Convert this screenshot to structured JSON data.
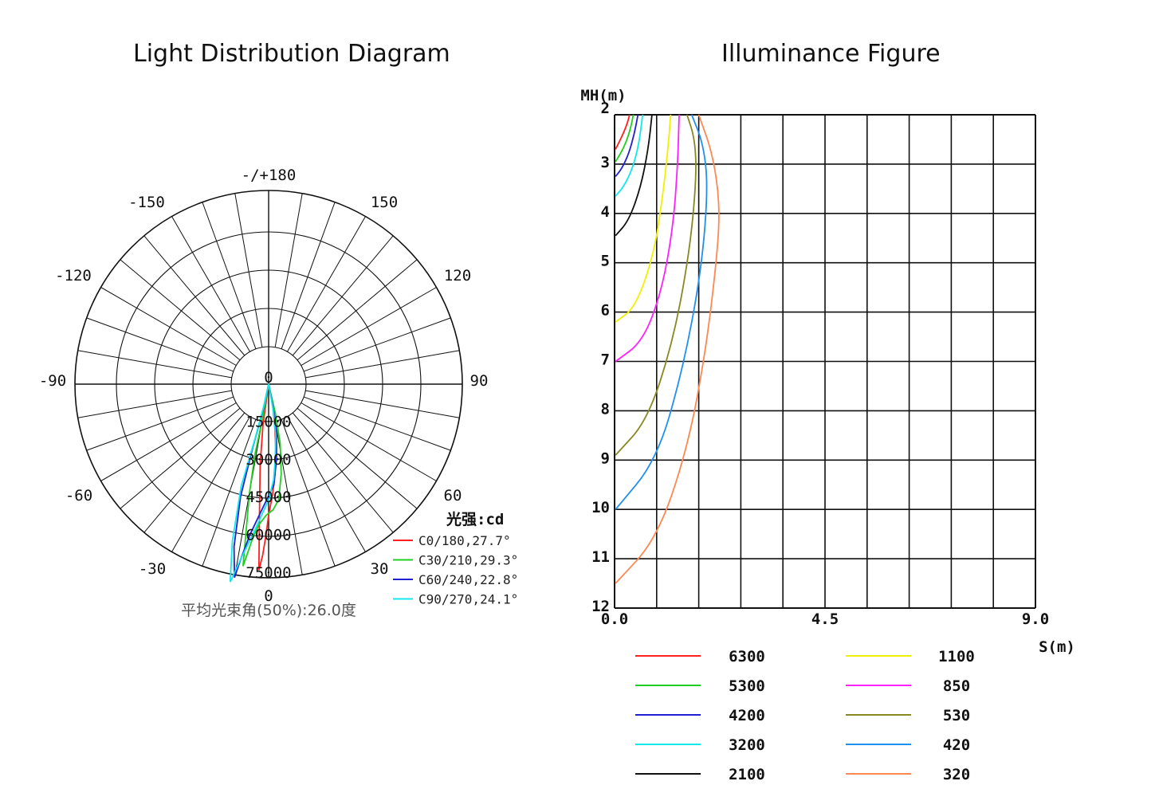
{
  "chart_data": [
    {
      "type": "polar",
      "title": "Light Distribution Diagram",
      "angle_labels": [
        "-/+180",
        "150",
        "-150",
        "120",
        "-120",
        "90",
        "-90",
        "60",
        "-60",
        "30",
        "-30",
        "0"
      ],
      "radial_ticks": [
        0,
        15000,
        30000,
        45000,
        60000,
        75000
      ],
      "radial_tick_labels": [
        "0",
        "15000",
        "30000",
        "45000",
        "60000",
        "75000"
      ],
      "unit_label": "光强:cd",
      "footer": "平均光束角(50%):26.0度",
      "series": [
        {
          "name": "C0/180,27.7°",
          "color": "#ff2020",
          "points": [
            [
              -3,
              74000
            ],
            [
              -2,
              68000
            ],
            [
              -1,
              60000
            ],
            [
              0,
              52000
            ],
            [
              2,
              44000
            ],
            [
              4,
              36000
            ],
            [
              6,
              28000
            ],
            [
              8,
              18000
            ],
            [
              10,
              10000
            ],
            [
              12,
              4000
            ],
            [
              14,
              0
            ],
            [
              0,
              0
            ],
            [
              -8,
              16000
            ],
            [
              -6,
              32000
            ],
            [
              -4,
              52000
            ],
            [
              -3,
              74000
            ]
          ]
        },
        {
          "name": "C30/210,29.3°",
          "color": "#20d020",
          "points": [
            [
              -8,
              73000
            ],
            [
              -6,
              62000
            ],
            [
              -4,
              56000
            ],
            [
              -1,
              52000
            ],
            [
              2,
              50000
            ],
            [
              5,
              46000
            ],
            [
              8,
              36000
            ],
            [
              11,
              24000
            ],
            [
              13,
              12000
            ],
            [
              14,
              0
            ],
            [
              0,
              0
            ],
            [
              -10,
              14000
            ],
            [
              -11,
              28000
            ],
            [
              -10,
              44000
            ],
            [
              -8,
              73000
            ]
          ]
        },
        {
          "name": "C60/240,22.8°",
          "color": "#2020d0",
          "points": [
            [
              -10,
              78000
            ],
            [
              -9,
              70000
            ],
            [
              -7,
              60000
            ],
            [
              -4,
              52000
            ],
            [
              -1,
              46000
            ],
            [
              3,
              40000
            ],
            [
              6,
              30000
            ],
            [
              9,
              20000
            ],
            [
              11,
              10000
            ],
            [
              12,
              0
            ],
            [
              0,
              0
            ],
            [
              -12,
              10000
            ],
            [
              -14,
              26000
            ],
            [
              -14,
              46000
            ],
            [
              -12,
              66000
            ],
            [
              -10,
              78000
            ]
          ]
        },
        {
          "name": "C90/270,24.1°",
          "color": "#10e8ee",
          "points": [
            [
              -11,
              80000
            ],
            [
              -9,
              70000
            ],
            [
              -6,
              60000
            ],
            [
              -3,
              52000
            ],
            [
              0,
              46000
            ],
            [
              3,
              38000
            ],
            [
              5,
              30000
            ],
            [
              8,
              20000
            ],
            [
              10,
              10000
            ],
            [
              12,
              0
            ],
            [
              0,
              0
            ],
            [
              -12,
              8000
            ],
            [
              -14,
              22000
            ],
            [
              -15,
              42000
            ],
            [
              -13,
              64000
            ],
            [
              -11,
              80000
            ]
          ]
        }
      ]
    },
    {
      "type": "line",
      "title": "Illuminance Figure",
      "xlabel": "S(m)",
      "ylabel": "MH(m)",
      "xlim": [
        0,
        9
      ],
      "ylim": [
        2,
        12
      ],
      "x_tick_labels": [
        "0.0",
        "4.5",
        "9.0"
      ],
      "y_tick_labels": [
        "2",
        "3",
        "4",
        "5",
        "6",
        "7",
        "8",
        "9",
        "10",
        "11",
        "12"
      ],
      "grid": true,
      "series": [
        {
          "name": "6300",
          "color": "#ff2020",
          "points": [
            [
              0.02,
              2.7
            ],
            [
              0.1,
              2.55
            ],
            [
              0.2,
              2.35
            ],
            [
              0.28,
              2.15
            ],
            [
              0.32,
              2.0
            ]
          ]
        },
        {
          "name": "5300",
          "color": "#20d020",
          "points": [
            [
              0.02,
              2.95
            ],
            [
              0.12,
              2.8
            ],
            [
              0.25,
              2.55
            ],
            [
              0.35,
              2.25
            ],
            [
              0.4,
              2.0
            ]
          ]
        },
        {
          "name": "4200",
          "color": "#2020d0",
          "points": [
            [
              0.02,
              3.25
            ],
            [
              0.15,
              3.1
            ],
            [
              0.3,
              2.8
            ],
            [
              0.42,
              2.4
            ],
            [
              0.5,
              2.0
            ]
          ]
        },
        {
          "name": "3200",
          "color": "#10e8ee",
          "points": [
            [
              0.02,
              3.65
            ],
            [
              0.2,
              3.45
            ],
            [
              0.38,
              3.1
            ],
            [
              0.52,
              2.6
            ],
            [
              0.6,
              2.0
            ]
          ]
        },
        {
          "name": "2100",
          "color": "#101010",
          "points": [
            [
              0.02,
              4.45
            ],
            [
              0.3,
              4.15
            ],
            [
              0.55,
              3.5
            ],
            [
              0.72,
              2.7
            ],
            [
              0.8,
              2.0
            ]
          ]
        },
        {
          "name": "1100",
          "color": "#f0f000",
          "points": [
            [
              0.02,
              6.2
            ],
            [
              0.45,
              5.9
            ],
            [
              0.85,
              4.8
            ],
            [
              1.05,
              3.5
            ],
            [
              1.15,
              2.6
            ],
            [
              1.2,
              2.0
            ]
          ]
        },
        {
          "name": "850",
          "color": "#ff20ff",
          "points": [
            [
              0.02,
              7.0
            ],
            [
              0.6,
              6.6
            ],
            [
              1.0,
              5.6
            ],
            [
              1.25,
              4.3
            ],
            [
              1.35,
              3.0
            ],
            [
              1.38,
              2.0
            ]
          ]
        },
        {
          "name": "530",
          "color": "#888820",
          "points": [
            [
              0.02,
              8.9
            ],
            [
              0.7,
              8.2
            ],
            [
              1.25,
              6.6
            ],
            [
              1.6,
              4.8
            ],
            [
              1.75,
              3.3
            ],
            [
              1.72,
              2.5
            ],
            [
              1.55,
              2.0
            ]
          ]
        },
        {
          "name": "420",
          "color": "#2090f0",
          "points": [
            [
              0.02,
              10.0
            ],
            [
              0.9,
              9.0
            ],
            [
              1.45,
              7.2
            ],
            [
              1.85,
              5.2
            ],
            [
              2.0,
              3.5
            ],
            [
              1.9,
              2.6
            ],
            [
              1.65,
              2.0
            ]
          ]
        },
        {
          "name": "320",
          "color": "#ff8850",
          "points": [
            [
              0.02,
              11.5
            ],
            [
              0.9,
              10.6
            ],
            [
              1.55,
              8.8
            ],
            [
              1.95,
              6.8
            ],
            [
              2.2,
              4.8
            ],
            [
              2.25,
              3.8
            ],
            [
              2.1,
              2.8
            ],
            [
              1.8,
              2.0
            ]
          ]
        }
      ]
    }
  ]
}
